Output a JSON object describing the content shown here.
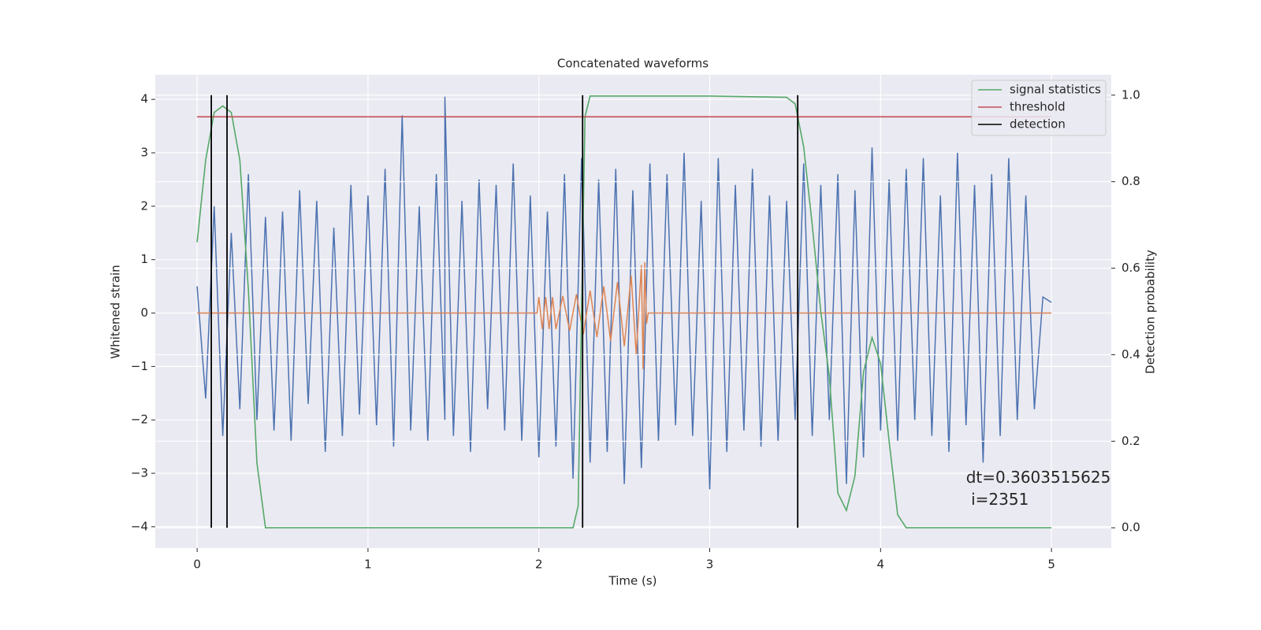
{
  "chart_data": {
    "type": "line",
    "title": "Concatenated waveforms",
    "x_label": "Time (s)",
    "y_label": "Whitened strain",
    "y2_label": "Detection probability",
    "xlim": [
      -0.245,
      5.35
    ],
    "ylim": [
      -4.4,
      4.46
    ],
    "y2lim": [
      -0.047,
      1.047
    ],
    "xticks": [
      0,
      1,
      2,
      3,
      4,
      5
    ],
    "yticks": [
      {
        "value": -4,
        "label": "−4"
      },
      {
        "value": -3,
        "label": "−3"
      },
      {
        "value": -2,
        "label": "−2"
      },
      {
        "value": -1,
        "label": "−1"
      },
      0,
      1,
      2,
      3,
      4
    ],
    "y2ticks": [
      {
        "value": 0,
        "label": "0.0"
      },
      0.2,
      0.4,
      0.6,
      0.8,
      {
        "value": 1,
        "label": "1.0"
      }
    ],
    "grid": true,
    "legend": "upper right",
    "strain_series": [
      {
        "color": "#4c72b0",
        "x": [
          0,
          0.05,
          0.1,
          0.15,
          0.2,
          0.25,
          0.3,
          0.35,
          0.4,
          0.45,
          0.5,
          0.55,
          0.6,
          0.65,
          0.7,
          0.75,
          0.8,
          0.85,
          0.9,
          0.95,
          1,
          1.05,
          1.1,
          1.15,
          1.2,
          1.25,
          1.3,
          1.35,
          1.4,
          1.45,
          1.45,
          1.5,
          1.55,
          1.6,
          1.65,
          1.7,
          1.75,
          1.8,
          1.85,
          1.9,
          1.95,
          2,
          2.05,
          2.1,
          2.15,
          2.2,
          2.25,
          2.3,
          2.35,
          2.4,
          2.45,
          2.5,
          2.55,
          2.6,
          2.65,
          2.7,
          2.75,
          2.8,
          2.85,
          2.9,
          2.95,
          3,
          3.05,
          3.1,
          3.15,
          3.2,
          3.25,
          3.3,
          3.35,
          3.4,
          3.45,
          3.5,
          3.55,
          3.6,
          3.65,
          3.7,
          3.75,
          3.8,
          3.85,
          3.9,
          3.95,
          4,
          4.05,
          4.1,
          4.15,
          4.2,
          4.25,
          4.3,
          4.35,
          4.4,
          4.45,
          4.5,
          4.55,
          4.6,
          4.65,
          4.7,
          4.75,
          4.8,
          4.85,
          4.9,
          4.95,
          5
        ],
        "values": [
          0.5,
          -1.6,
          2.0,
          -2.3,
          1.5,
          -1.8,
          2.6,
          -2.0,
          1.8,
          -2.2,
          1.9,
          -2.4,
          2.3,
          -1.7,
          2.1,
          -2.6,
          1.6,
          -2.3,
          2.4,
          -1.9,
          2.2,
          -2.1,
          2.7,
          -2.5,
          3.7,
          -2.2,
          2.0,
          -2.4,
          2.6,
          -2.0,
          4.05,
          -2.3,
          2.1,
          -2.6,
          2.5,
          -1.8,
          2.4,
          -2.2,
          2.8,
          -2.4,
          2.2,
          -2.7,
          1.9,
          -2.5,
          2.6,
          -3.1,
          2.9,
          -2.8,
          2.5,
          -2.6,
          2.7,
          -3.2,
          2.3,
          -2.9,
          2.8,
          -2.4,
          2.6,
          -2.1,
          3.0,
          -2.3,
          2.1,
          -3.3,
          2.9,
          -2.6,
          2.4,
          -2.2,
          2.7,
          -2.5,
          2.2,
          -2.4,
          2.1,
          -2.0,
          2.8,
          -2.3,
          2.4,
          -2.0,
          2.6,
          -3.2,
          2.3,
          -2.7,
          3.1,
          -2.2,
          2.5,
          -2.4,
          2.7,
          -2.0,
          2.9,
          -2.3,
          2.2,
          -2.6,
          3.0,
          -2.1,
          2.4,
          -2.8,
          2.6,
          -2.3,
          2.9,
          -2.0,
          2.2,
          -1.8,
          0.3,
          0.2
        ]
      },
      {
        "color": "#dd8452",
        "x": [
          0,
          1.99,
          2.0,
          2.02,
          2.04,
          2.06,
          2.08,
          2.1,
          2.14,
          2.18,
          2.22,
          2.26,
          2.3,
          2.34,
          2.38,
          2.42,
          2.46,
          2.5,
          2.54,
          2.57,
          2.6,
          2.61,
          2.62,
          2.63,
          2.64,
          5
        ],
        "values": [
          0,
          0,
          0.3,
          -0.3,
          0.3,
          -0.3,
          0.3,
          -0.3,
          0.32,
          -0.33,
          0.35,
          -0.4,
          0.42,
          -0.45,
          0.5,
          -0.52,
          0.58,
          -0.62,
          0.7,
          -0.78,
          0.9,
          -1.05,
          0.95,
          -0.2,
          0,
          0
        ]
      }
    ],
    "series": [
      {
        "name": "signal statistics",
        "color": "#55a868",
        "axis": "y2",
        "x": [
          0,
          0.05,
          0.1,
          0.15,
          0.2,
          0.25,
          0.3,
          0.35,
          0.4,
          1.0,
          2.0,
          2.2,
          2.23,
          2.25,
          2.27,
          2.3,
          3.0,
          3.45,
          3.5,
          3.55,
          3.6,
          3.65,
          3.7,
          3.75,
          3.8,
          3.85,
          3.9,
          3.95,
          4.0,
          4.05,
          4.1,
          4.15,
          5.0
        ],
        "values": [
          0.66,
          0.85,
          0.96,
          0.975,
          0.96,
          0.85,
          0.55,
          0.15,
          0.0,
          0.0,
          0.0,
          0.0,
          0.05,
          0.5,
          0.95,
          0.998,
          0.998,
          0.995,
          0.98,
          0.88,
          0.7,
          0.5,
          0.35,
          0.08,
          0.04,
          0.12,
          0.36,
          0.44,
          0.38,
          0.2,
          0.03,
          0.0,
          0.0
        ]
      },
      {
        "name": "threshold",
        "color": "#c44e52",
        "axis": "y2",
        "x": [
          0,
          5
        ],
        "values": [
          0.95,
          0.95
        ]
      },
      {
        "name": "detection",
        "color": "#000000",
        "axis": "y2",
        "kind": "vlines",
        "x": [
          0.083,
          0.175,
          2.256,
          3.515
        ],
        "span": [
          0,
          1
        ]
      }
    ],
    "annotation": {
      "x": 4.5,
      "y": -3.3,
      "lines": [
        "dt=0.3603515625",
        " i=2351"
      ]
    }
  }
}
